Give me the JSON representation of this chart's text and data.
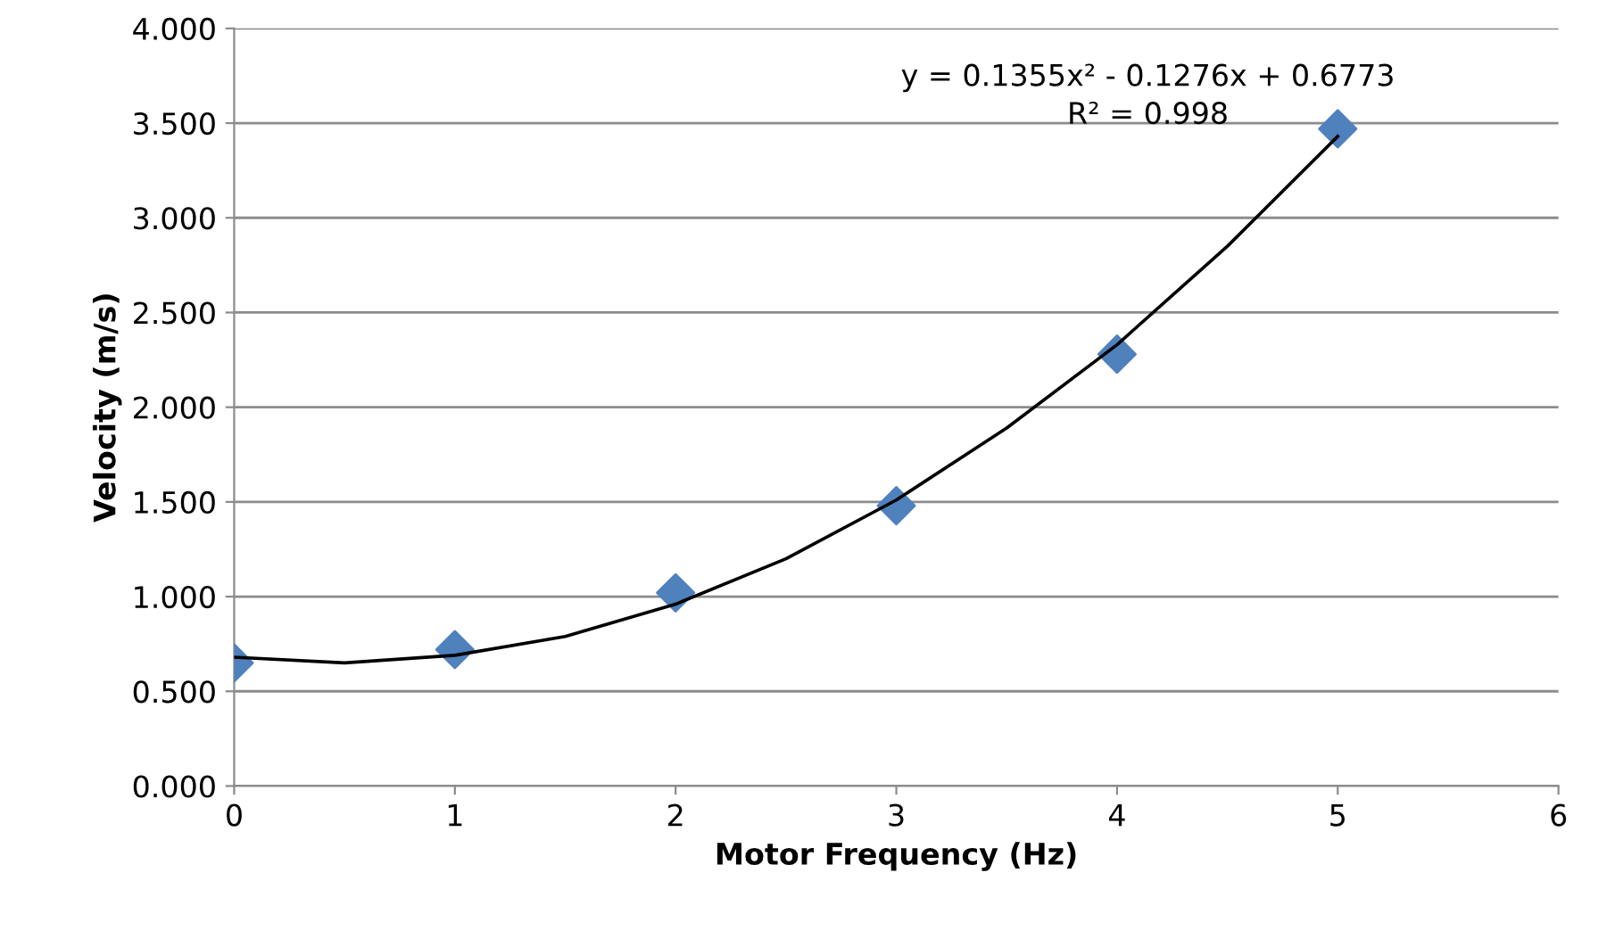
{
  "chart_data": {
    "type": "scatter",
    "xlabel": "Motor Frequency (Hz)",
    "ylabel": "Velocity (m/s)",
    "xlim": [
      0,
      6
    ],
    "xticks": [
      0,
      1,
      2,
      3,
      4,
      5,
      6
    ],
    "ylim": [
      0,
      4
    ],
    "yticks": [
      {
        "value": 0,
        "label": "0.000"
      },
      {
        "value": 0.5,
        "label": "0.500"
      },
      {
        "value": 1,
        "label": "1.000"
      },
      {
        "value": 1.5,
        "label": "1.500"
      },
      {
        "value": 2,
        "label": "2.000"
      },
      {
        "value": 2.5,
        "label": "2.500"
      },
      {
        "value": 3,
        "label": "3.000"
      },
      {
        "value": 3.5,
        "label": "3.500"
      },
      {
        "value": 4,
        "label": "4.000"
      }
    ],
    "grid": "y",
    "legend": false,
    "series": [
      {
        "color": "#4f81bd",
        "marker": "diamond",
        "x": [
          0,
          1,
          2,
          3,
          4,
          5
        ],
        "values": [
          0.65,
          0.72,
          1.02,
          1.48,
          2.28,
          3.47
        ]
      },
      {
        "type": "line",
        "color": "#000000",
        "marker": "none",
        "line_style": "solid",
        "x": [
          0,
          0.5,
          1,
          1.5,
          2,
          2.5,
          3,
          3.5,
          4,
          4.5,
          5
        ],
        "values": [
          0.68,
          0.65,
          0.69,
          0.79,
          0.96,
          1.2,
          1.51,
          1.89,
          2.33,
          2.85,
          3.43
        ]
      }
    ],
    "annotations": [
      "y = 0.1355x² - 0.1276x + 0.6773",
      "R² = 0.998"
    ]
  }
}
